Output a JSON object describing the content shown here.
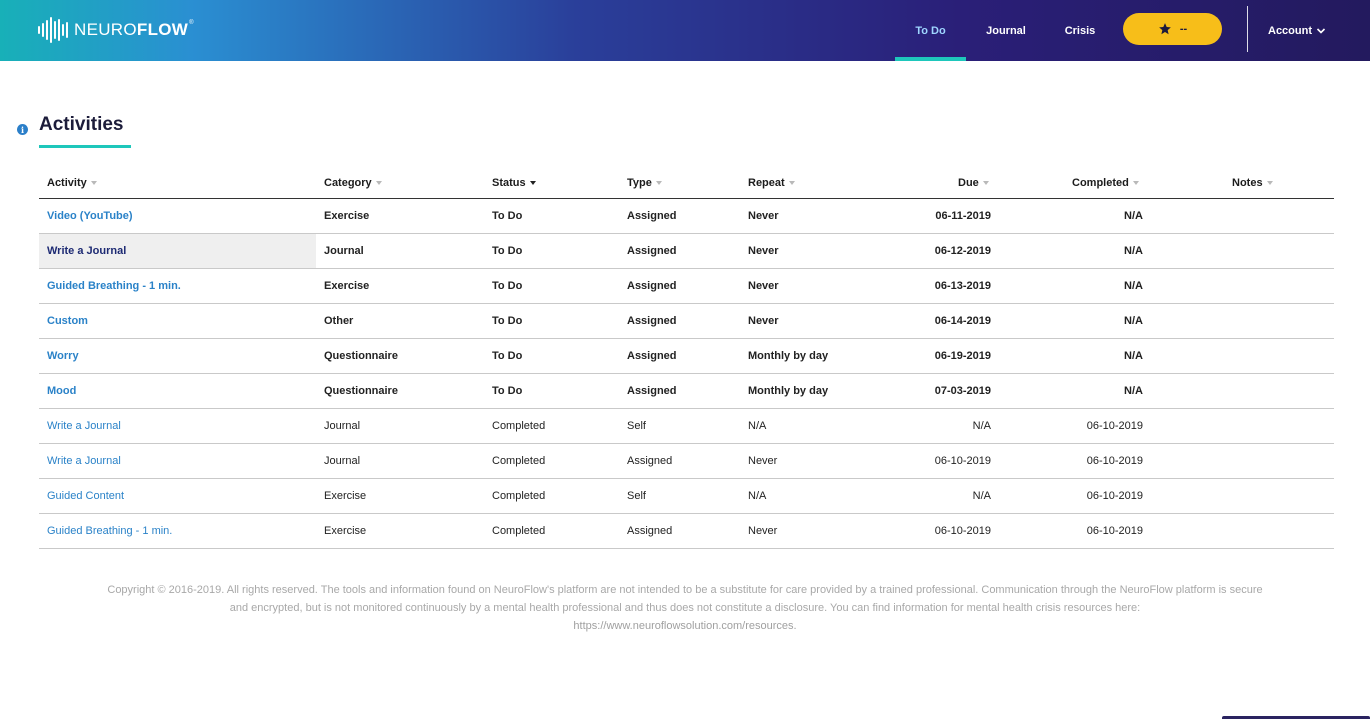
{
  "brand": {
    "logo_light": "NEURO",
    "logo_bold": "FLOW",
    "trademark": "®"
  },
  "nav": {
    "todo": "To Do",
    "journal": "Journal",
    "crisis": "Crisis",
    "points": "--",
    "account": "Account",
    "active_tab": "To Do"
  },
  "colors": {
    "accent_teal": "#1ec7bb",
    "link_blue": "#2a82c8",
    "points_yellow": "#f7be19",
    "nav_dark": "#231a5e"
  },
  "page": {
    "title": "Activities",
    "info_icon": "info-icon"
  },
  "table": {
    "headers": {
      "activity": "Activity",
      "category": "Category",
      "status": "Status",
      "type": "Type",
      "repeat": "Repeat",
      "due": "Due",
      "completed": "Completed",
      "notes": "Notes"
    },
    "sorted_by": "Status",
    "rows": [
      {
        "activity": "Video (YouTube)",
        "category": "Exercise",
        "status": "To Do",
        "type": "Assigned",
        "repeat": "Never",
        "due": "06-11-2019",
        "completed": "N/A",
        "notes": ""
      },
      {
        "activity": "Write a Journal",
        "category": "Journal",
        "status": "To Do",
        "type": "Assigned",
        "repeat": "Never",
        "due": "06-12-2019",
        "completed": "N/A",
        "notes": ""
      },
      {
        "activity": "Guided Breathing - 1 min.",
        "category": "Exercise",
        "status": "To Do",
        "type": "Assigned",
        "repeat": "Never",
        "due": "06-13-2019",
        "completed": "N/A",
        "notes": ""
      },
      {
        "activity": "Custom",
        "category": "Other",
        "status": "To Do",
        "type": "Assigned",
        "repeat": "Never",
        "due": "06-14-2019",
        "completed": "N/A",
        "notes": ""
      },
      {
        "activity": "Worry",
        "category": "Questionnaire",
        "status": "To Do",
        "type": "Assigned",
        "repeat": "Monthly by day",
        "due": "06-19-2019",
        "completed": "N/A",
        "notes": ""
      },
      {
        "activity": "Mood",
        "category": "Questionnaire",
        "status": "To Do",
        "type": "Assigned",
        "repeat": "Monthly by day",
        "due": "07-03-2019",
        "completed": "N/A",
        "notes": ""
      },
      {
        "activity": "Write a Journal",
        "category": "Journal",
        "status": "Completed",
        "type": "Self",
        "repeat": "N/A",
        "due": "N/A",
        "completed": "06-10-2019",
        "notes": ""
      },
      {
        "activity": "Write a Journal",
        "category": "Journal",
        "status": "Completed",
        "type": "Assigned",
        "repeat": "Never",
        "due": "06-10-2019",
        "completed": "06-10-2019",
        "notes": ""
      },
      {
        "activity": "Guided Content",
        "category": "Exercise",
        "status": "Completed",
        "type": "Self",
        "repeat": "N/A",
        "due": "N/A",
        "completed": "06-10-2019",
        "notes": ""
      },
      {
        "activity": "Guided Breathing - 1 min.",
        "category": "Exercise",
        "status": "Completed",
        "type": "Assigned",
        "repeat": "Never",
        "due": "06-10-2019",
        "completed": "06-10-2019",
        "notes": ""
      }
    ]
  },
  "footer": {
    "text": "Copyright © 2016-2019. All rights reserved. The tools and information found on NeuroFlow's platform are not intended to be a substitute for care provided by a trained professional. Communication through the NeuroFlow platform is secure and encrypted, but is not monitored continuously by a mental health professional and thus does not constitute a disclosure. You can find information for mental health crisis resources here:",
    "url": "https://www.neuroflowsolution.com/resources."
  }
}
